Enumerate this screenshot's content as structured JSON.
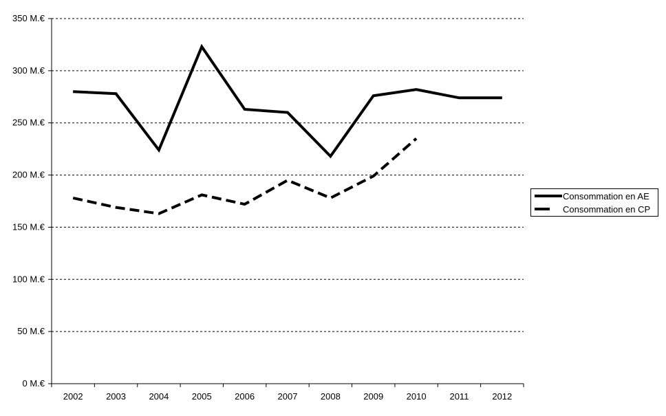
{
  "chart_data": {
    "type": "line",
    "title": "",
    "categories": [
      "2002",
      "2003",
      "2004",
      "2005",
      "2006",
      "2007",
      "2008",
      "2009",
      "2010",
      "2011",
      "2012"
    ],
    "series": [
      {
        "name": "Consommation en AE",
        "style": "solid",
        "values": [
          280,
          278,
          224,
          323,
          263,
          260,
          218,
          276,
          282,
          274,
          274
        ]
      },
      {
        "name": "Consommation en CP",
        "style": "dashed",
        "values": [
          178,
          169,
          163,
          181,
          172,
          195,
          178,
          199,
          235,
          null,
          null
        ]
      }
    ],
    "y_axis": {
      "min": 0,
      "max": 350,
      "step": 50,
      "unit_suffix": " M.€",
      "tick_labels": [
        "0 M.€",
        "50 M.€",
        "100 M.€",
        "150 M.€",
        "200 M.€",
        "250 M.€",
        "300 M.€",
        "350 M.€"
      ]
    },
    "grid": "horizontal-dashed",
    "legend_position": "right",
    "colors": {
      "line": "#000000",
      "grid": "#000000",
      "axis": "#000000",
      "text": "#000000",
      "background": "#ffffff"
    }
  }
}
